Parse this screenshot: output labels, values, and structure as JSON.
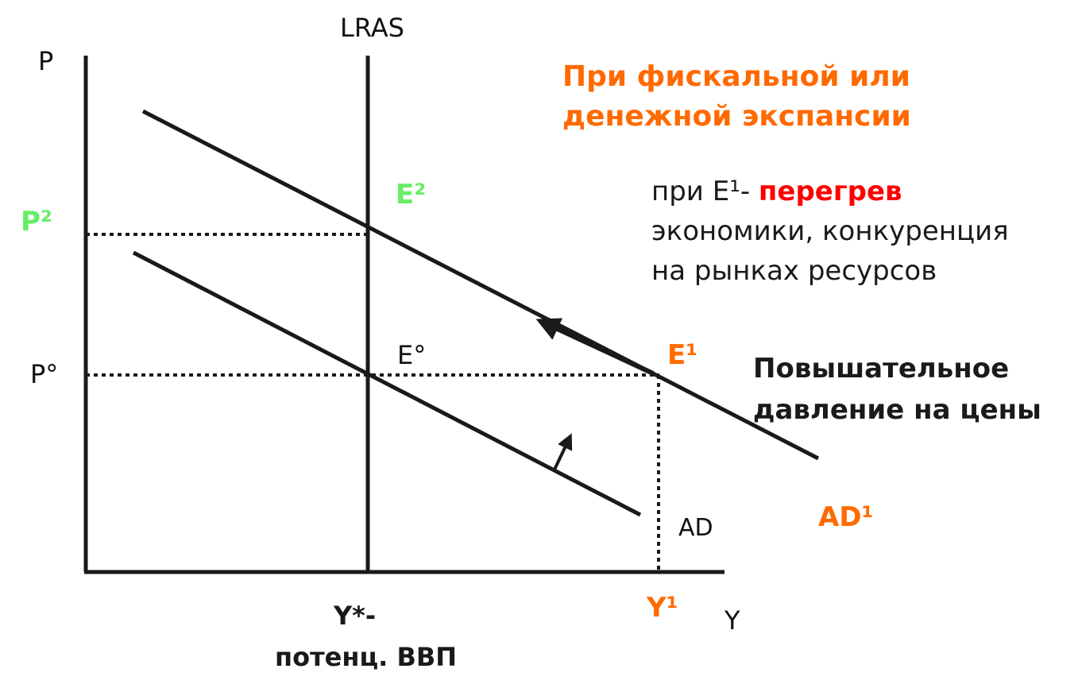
{
  "axes": {
    "y_axis_label": "P",
    "x_axis_label": "Y"
  },
  "curves": {
    "lras_label": "LRAS",
    "ad_label": "AD",
    "ad1_label": "AD¹"
  },
  "points": {
    "e0": "E°",
    "e1": "E¹",
    "e2": "E²"
  },
  "price_levels": {
    "p0": "P°",
    "p2": "P²"
  },
  "output_levels": {
    "y_star_line1": "Y*-",
    "y_star_line2": "потенц. ВВП",
    "y1": "Y¹"
  },
  "notes": {
    "title_line1": "При фискальной или",
    "title_line2": "денежной экспансии",
    "overheat_prefix": "при E¹- ",
    "overheat_highlight": "перегрев",
    "overheat_line2": "экономики, конкуренция",
    "overheat_line3": "на рынках ресурсов",
    "pressure_line1": "Повышательное",
    "pressure_line2": "давление на цены"
  },
  "colors": {
    "orange": "#ff6a00",
    "green": "#66ee66",
    "red": "#ff0000",
    "ink": "#1a1a1a"
  }
}
